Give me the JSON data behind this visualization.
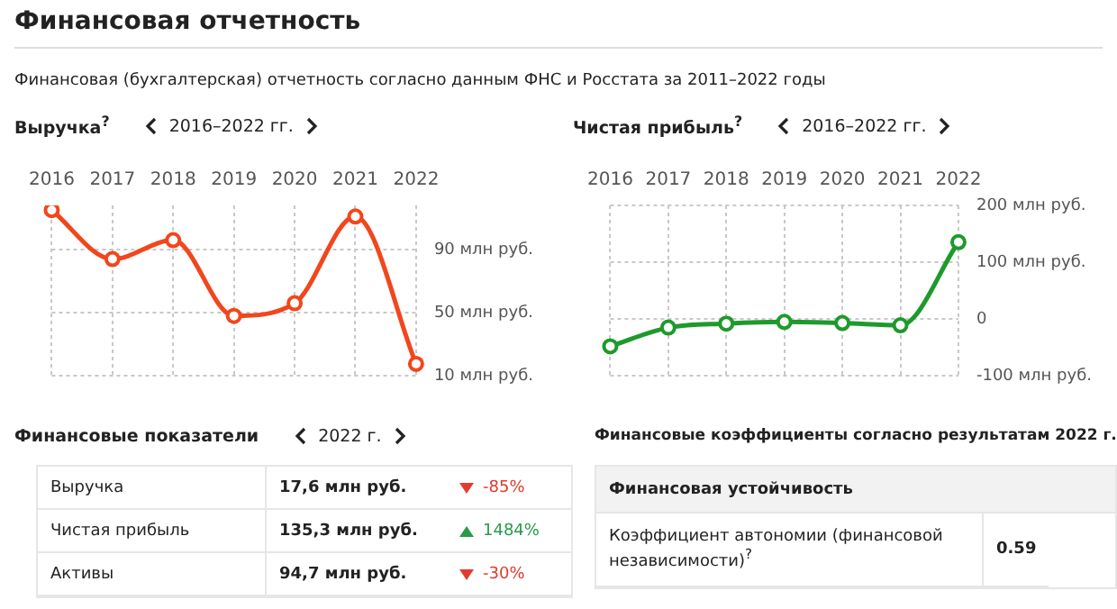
{
  "chart_data": [
    {
      "type": "other",
      "title": "Финансовая отчетность",
      "annotations": [
        "Финансовая (бухгалтерская) отчетность согласно данным ФНС и Росстата за 2011–2022 годы"
      ]
    },
    {
      "type": "line",
      "title": "Выручка$^{?}$",
      "subtitle": "2016–2022 гг.",
      "categories": [
        "2016",
        "2017",
        "2018",
        "2019",
        "2020",
        "2021",
        "2022"
      ],
      "values": [
        115,
        84,
        96,
        48,
        56,
        111,
        17.6
      ],
      "color": "#f2461c",
      "ylim": [
        10,
        118
      ],
      "yticks": [
        {
          "value": 10,
          "label": "10 млн руб."
        },
        {
          "value": 50,
          "label": "50 млн руб."
        },
        {
          "value": 90,
          "label": "90 млн руб."
        }
      ],
      "grid": true,
      "marker": "circle"
    },
    {
      "type": "line",
      "title": "Чистая прибыль$^{?}$",
      "subtitle": "2016–2022 гг.",
      "categories": [
        "2016",
        "2017",
        "2018",
        "2019",
        "2020",
        "2021",
        "2022"
      ],
      "values": [
        -48,
        -15,
        -8,
        -5,
        -7,
        -11,
        135.3
      ],
      "color": "#1e9a2c",
      "ylim": [
        -100,
        200
      ],
      "yticks": [
        {
          "value": -100,
          "label": "-100 млн руб."
        },
        0,
        {
          "value": 100,
          "label": "100 млн руб."
        },
        {
          "value": 200,
          "label": "200 млн руб."
        }
      ],
      "grid": true,
      "marker": "circle"
    },
    {
      "type": "other",
      "title": "Финансовые показатели",
      "subtitle": "2022 г.",
      "annotations": [
        "Выручка",
        "17,6 млн руб.",
        "-85%",
        "Чистая прибыль",
        "135,3 млн руб.",
        "1484%",
        "Активы",
        "94,7 млн руб.",
        "-30%"
      ]
    },
    {
      "type": "other",
      "title": "Финансовые коэффициенты согласно результатам 2022 г.",
      "annotations": [
        "Финансовая устойчивость",
        "Коэффициент автономии (финансовой независимости)$^{?}$",
        "0.59"
      ]
    }
  ]
}
